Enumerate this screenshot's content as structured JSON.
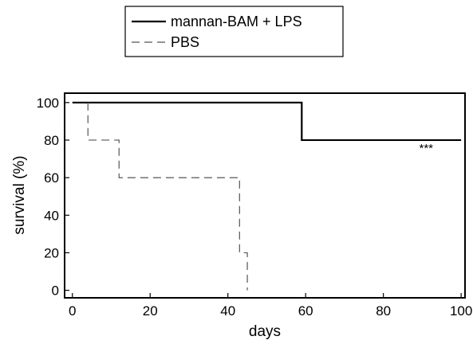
{
  "chart_data": {
    "type": "line",
    "step": true,
    "title": "",
    "xlabel": "days",
    "ylabel": "survival (%)",
    "xlim": [
      -2,
      101
    ],
    "ylim": [
      -4,
      105
    ],
    "xticks": [
      0,
      20,
      40,
      60,
      80,
      100
    ],
    "yticks": [
      0,
      20,
      40,
      60,
      80,
      100
    ],
    "grid": false,
    "legend": "top-left, above plot",
    "annotations": [
      {
        "text": "***",
        "x": 91,
        "y": 77
      }
    ],
    "series": [
      {
        "name": "mannan-BAM + LPS",
        "style": "solid",
        "color": "#000000",
        "x": [
          0,
          59,
          59,
          100
        ],
        "y": [
          100,
          100,
          80,
          80
        ]
      },
      {
        "name": "PBS",
        "style": "dashed",
        "color": "#555555",
        "x": [
          4,
          4,
          12,
          12,
          43,
          43,
          45,
          45
        ],
        "y": [
          100,
          80,
          80,
          60,
          60,
          20,
          20,
          0
        ]
      }
    ]
  }
}
